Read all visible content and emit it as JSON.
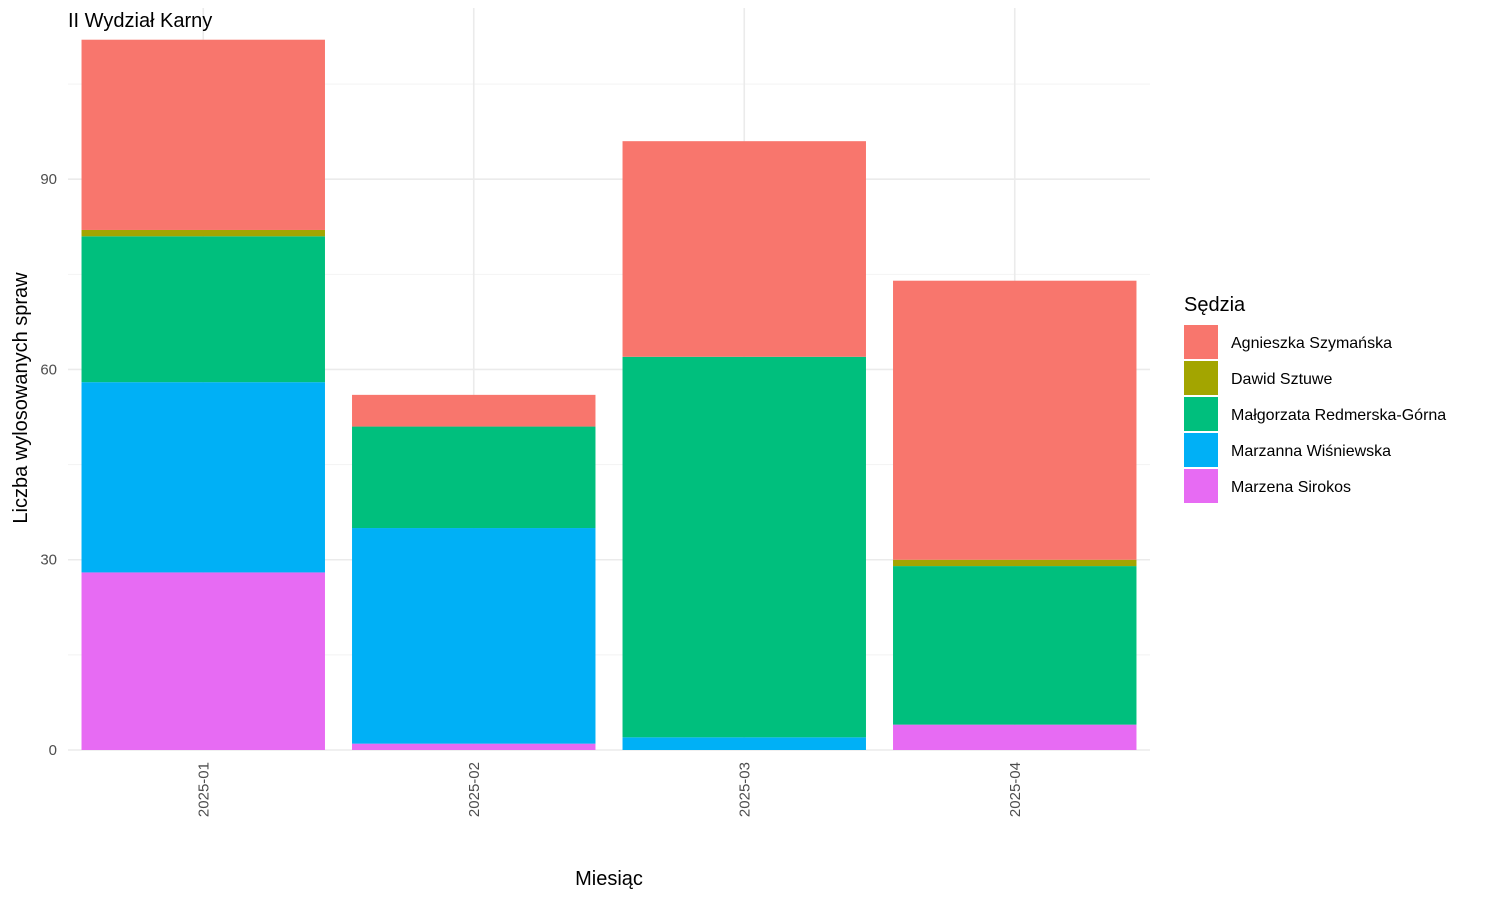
{
  "chart_data": {
    "type": "bar",
    "stacked": true,
    "title": "II Wydział Karny",
    "xlabel": "Miesiąc",
    "ylabel": "Liczba wylosowanych spraw",
    "categories": [
      "2025-01",
      "2025-02",
      "2025-03",
      "2025-04"
    ],
    "ylim": [
      0,
      117
    ],
    "yticks": [
      0,
      30,
      60,
      90
    ],
    "grid": true,
    "legend_position": "right",
    "legend_title": "Sędzia",
    "series": [
      {
        "name": "Agnieszka Szymańska",
        "color": "#F8766D",
        "values": [
          30,
          5,
          34,
          44
        ]
      },
      {
        "name": "Dawid Sztuwe",
        "color": "#A3A500",
        "values": [
          1,
          0,
          0,
          1
        ]
      },
      {
        "name": "Małgorzata Redmerska-Górna",
        "color": "#00BF7D",
        "values": [
          23,
          16,
          60,
          25
        ]
      },
      {
        "name": "Marzanna Wiśniewska",
        "color": "#00B0F6",
        "values": [
          30,
          34,
          2,
          0
        ]
      },
      {
        "name": "Marzena Sirokos",
        "color": "#E76BF3",
        "values": [
          28,
          1,
          0,
          4
        ]
      }
    ]
  }
}
